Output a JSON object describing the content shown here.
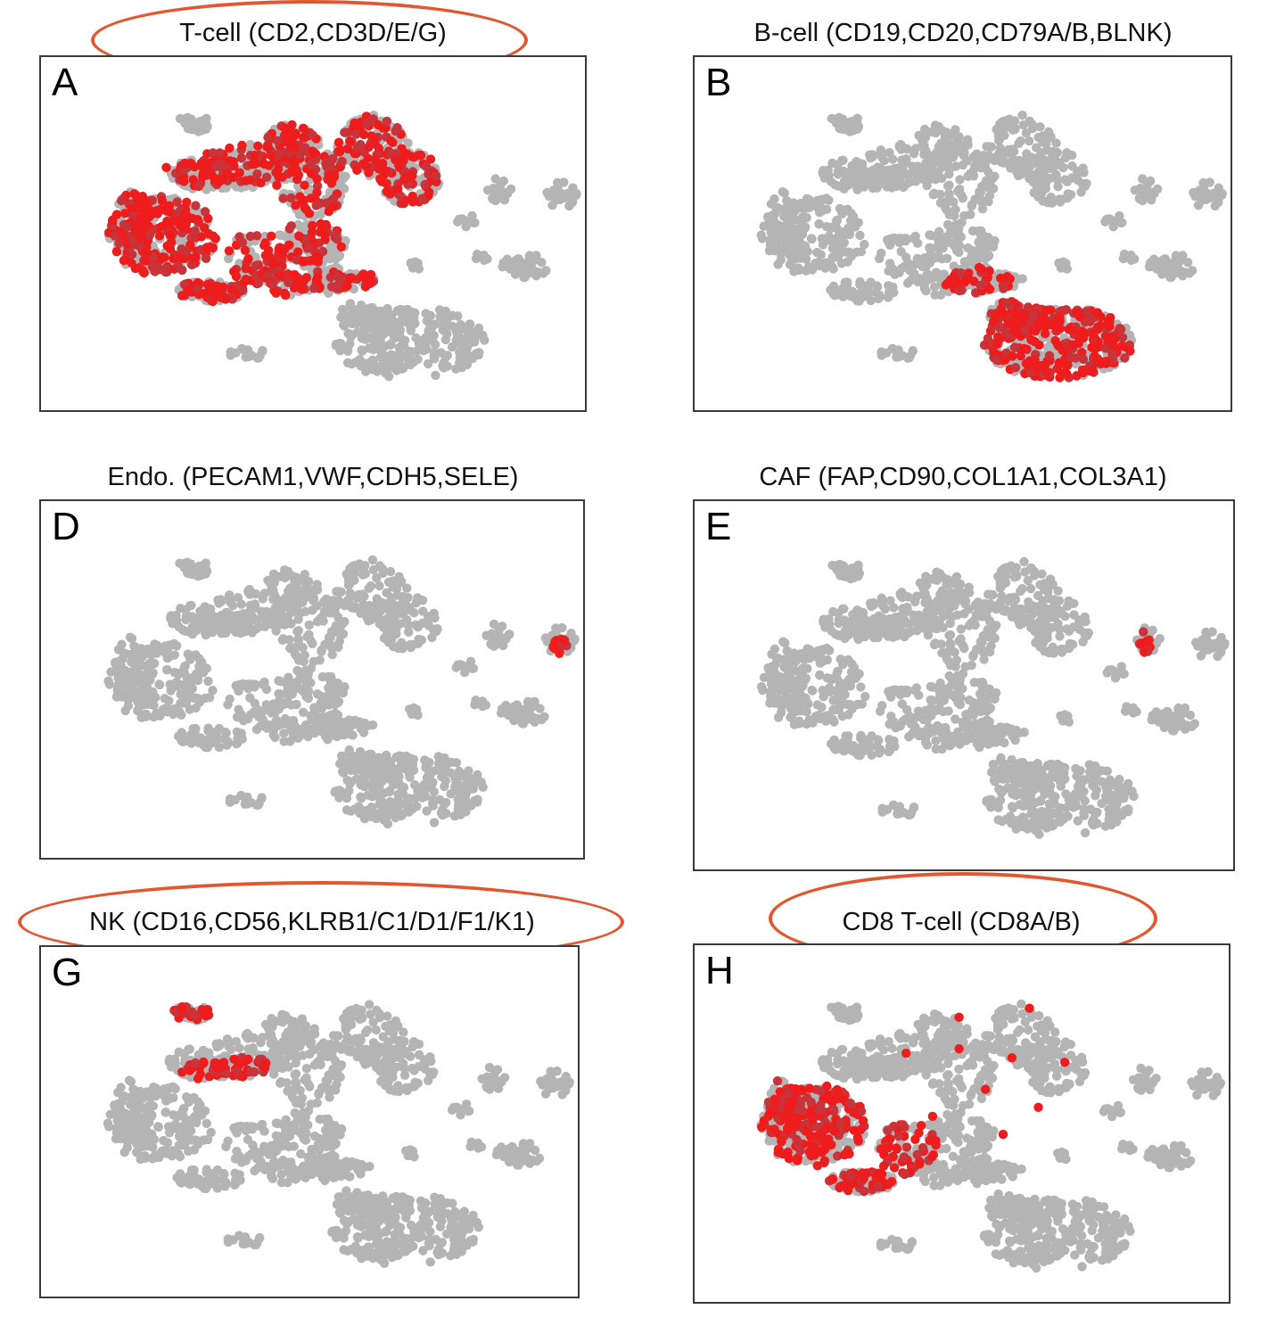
{
  "colors": {
    "background_cell": "#b4b4b4",
    "positive_cell": "#ee1c1c",
    "positive_cell_dark": "#c8343a",
    "highlight": "#e2572f",
    "frame": "#3a3a3a"
  },
  "chart_data": [
    {
      "type": "scatter",
      "letter": "A",
      "title": "T-cell (CD2,CD3D/E/G)",
      "highlighted": true,
      "positive_clusters": [
        "upper-left",
        "upper-middle",
        "upper-right",
        "left",
        "lower-left",
        "middle"
      ]
    },
    {
      "type": "scatter",
      "letter": "B",
      "title": "B-cell (CD19,CD20,CD79A/B,BLNK)",
      "highlighted": false,
      "positive_clusters": [
        "lower-right",
        "middle-bridge"
      ]
    },
    {
      "type": "scatter",
      "letter": "D",
      "title": "Endo. (PECAM1,VWF,CDH5,SELE)",
      "highlighted": false,
      "positive_clusters": [
        "far-right-small"
      ]
    },
    {
      "type": "scatter",
      "letter": "E",
      "title": "CAF (FAP,CD90,COL1A1,COL3A1)",
      "highlighted": false,
      "positive_clusters": [
        "right-small"
      ]
    },
    {
      "type": "scatter",
      "letter": "G",
      "title": "NK (CD16,CD56,KLRB1/C1/D1/F1/K1)",
      "highlighted": true,
      "positive_clusters": [
        "top-left-small"
      ]
    },
    {
      "type": "scatter",
      "letter": "H",
      "title": "CD8 T-cell (CD8A/B)",
      "highlighted": true,
      "positive_clusters": [
        "left",
        "lower-left",
        "scattered-upper"
      ]
    }
  ]
}
